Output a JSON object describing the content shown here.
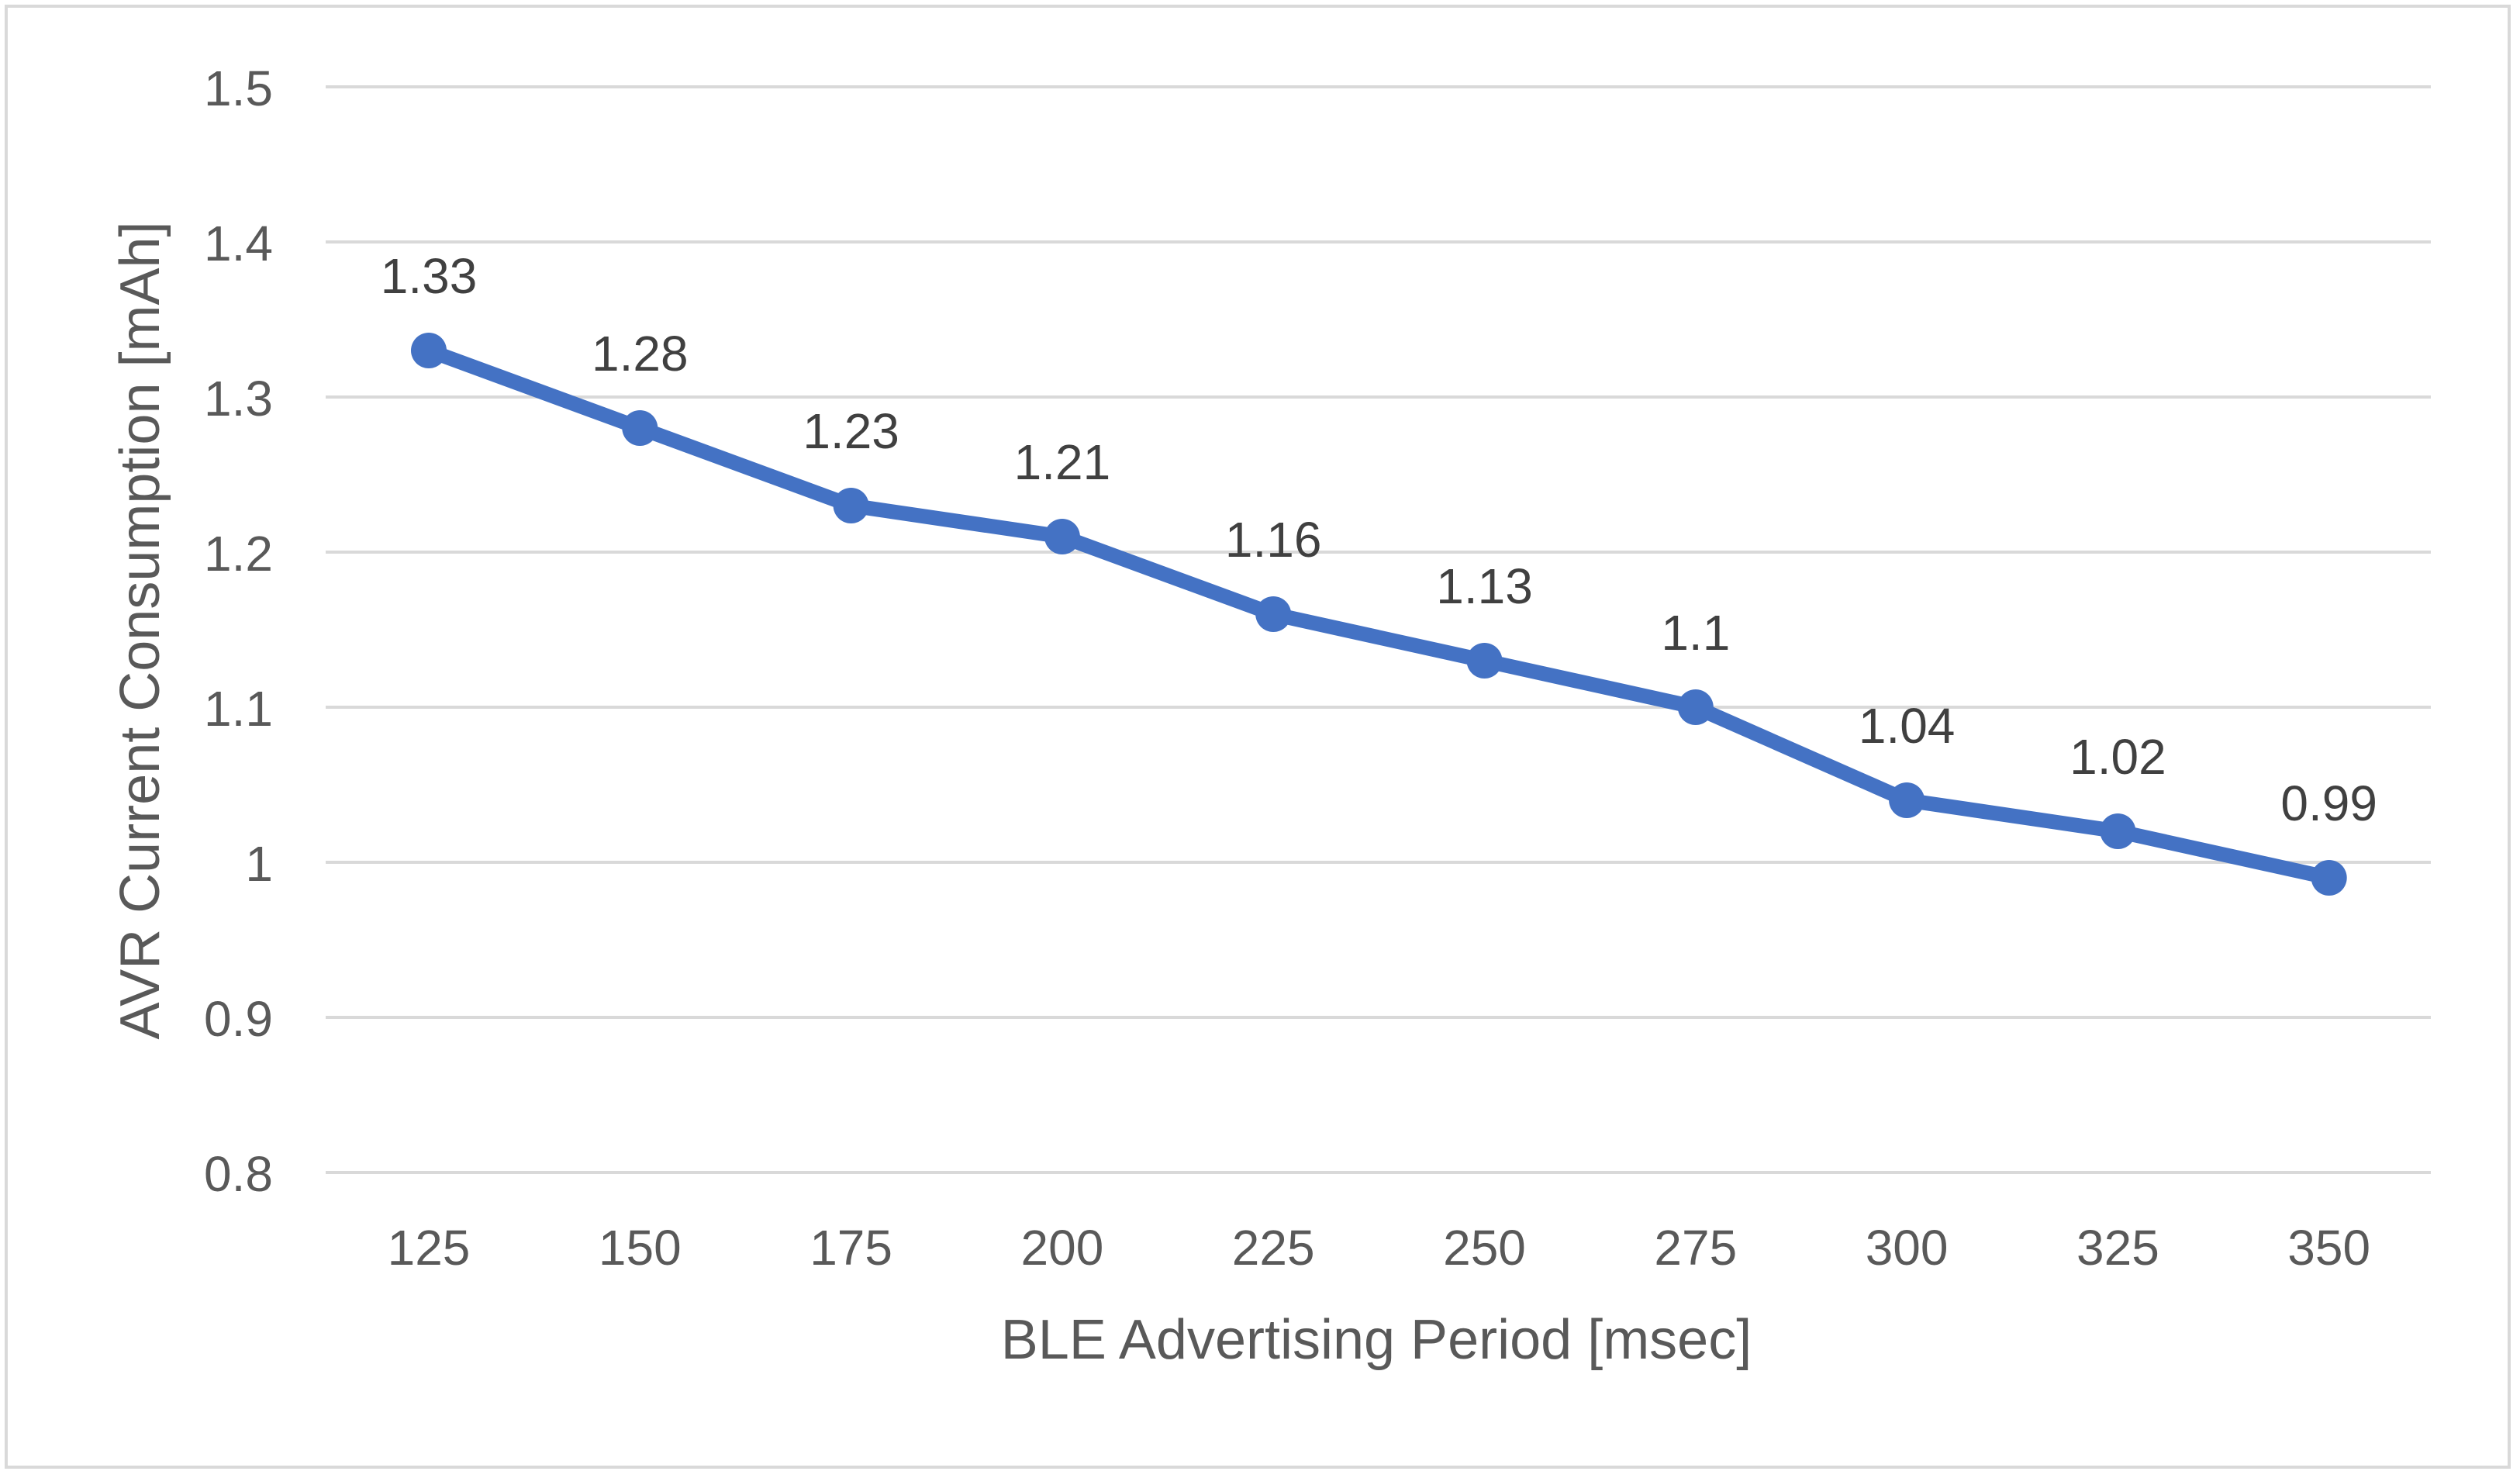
{
  "chart_data": {
    "type": "line",
    "title": "",
    "xlabel": "BLE Advertising Period [msec]",
    "ylabel": "AVR Current Consumption [mAh]",
    "categories": [
      "125",
      "150",
      "175",
      "200",
      "225",
      "250",
      "275",
      "300",
      "325",
      "350"
    ],
    "series": [
      {
        "name": "AVR Current Consumption",
        "values": [
          1.33,
          1.28,
          1.23,
          1.21,
          1.16,
          1.13,
          1.1,
          1.04,
          1.02,
          0.99
        ],
        "labels": [
          "1.33",
          "1.28",
          "1.23",
          "1.21",
          "1.16",
          "1.13",
          "1.1",
          "1.04",
          "1.02",
          "0.99"
        ]
      }
    ],
    "ylim": [
      0.8,
      1.5
    ],
    "yticks": [
      0.8,
      0.9,
      1,
      1.1,
      1.2,
      1.3,
      1.4,
      1.5
    ],
    "ytick_labels": [
      "0.8",
      "0.9",
      "1",
      "1.1",
      "1.2",
      "1.3",
      "1.4",
      "1.5"
    ],
    "grid": true,
    "legend": "none",
    "colors": {
      "series": "#4472c4",
      "grid": "#d9d9d9",
      "tick_text": "#595959",
      "label_text": "#404040",
      "axis_title": "#595959"
    }
  }
}
